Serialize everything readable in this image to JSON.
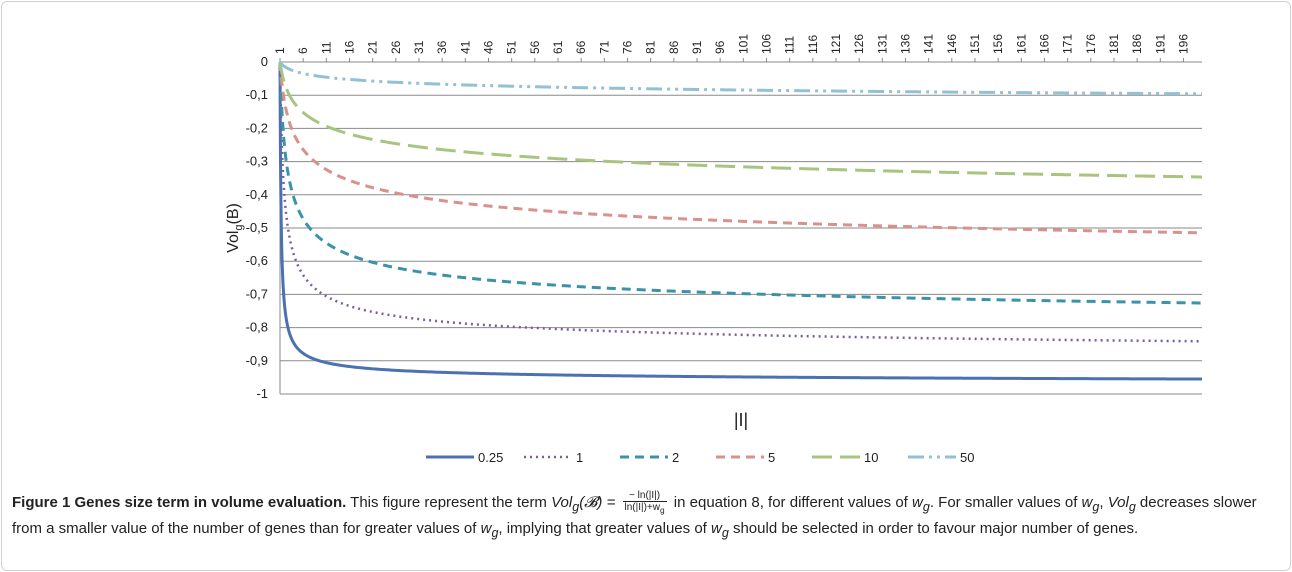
{
  "chart_data": {
    "type": "line",
    "xlabel": "|I|",
    "ylabel": "Vol",
    "ylabel_sub": "g",
    "ylabel_suffix": "(B)",
    "x_tick_labels": [
      "1",
      "6",
      "11",
      "16",
      "21",
      "26",
      "31",
      "36",
      "41",
      "46",
      "51",
      "56",
      "61",
      "66",
      "71",
      "76",
      "81",
      "86",
      "91",
      "96",
      "101",
      "106",
      "111",
      "116",
      "121",
      "126",
      "131",
      "136",
      "141",
      "146",
      "151",
      "156",
      "161",
      "166",
      "171",
      "176",
      "181",
      "186",
      "191",
      "196"
    ],
    "y_tick_labels": [
      "0",
      "-0,1",
      "-0,2",
      "-0,3",
      "-0,4",
      "-0,5",
      "-0,6",
      "-0,7",
      "-0,8",
      "-0,9",
      "-1"
    ],
    "ylim": [
      -1,
      0
    ],
    "xlim": [
      1,
      200
    ],
    "grid": "horizontal",
    "legend_placement": "bottom",
    "series": [
      {
        "name": "0.25",
        "w": 0.25,
        "color": "#4a71b0",
        "dash": "solid",
        "x": [
          1,
          2,
          3,
          5,
          10,
          20,
          50,
          100,
          150,
          200
        ],
        "values": [
          0,
          -0.735,
          -0.815,
          -0.866,
          -0.902,
          -0.923,
          -0.94,
          -0.948,
          -0.953,
          -0.955
        ]
      },
      {
        "name": "1",
        "w": 1,
        "color": "#7b5d9c",
        "dash": "dotted",
        "x": [
          1,
          2,
          3,
          5,
          10,
          20,
          50,
          100,
          150,
          200
        ],
        "values": [
          0,
          -0.409,
          -0.524,
          -0.617,
          -0.697,
          -0.75,
          -0.796,
          -0.822,
          -0.834,
          -0.841
        ]
      },
      {
        "name": "2",
        "w": 2,
        "color": "#3a93ab",
        "dash": "dashed",
        "x": [
          1,
          2,
          3,
          5,
          10,
          20,
          50,
          100,
          150,
          200
        ],
        "values": [
          0,
          -0.257,
          -0.355,
          -0.446,
          -0.535,
          -0.6,
          -0.662,
          -0.697,
          -0.715,
          -0.726
        ]
      },
      {
        "name": "5",
        "w": 5,
        "color": "#d9918b",
        "dash": "dashed",
        "x": [
          1,
          2,
          3,
          5,
          10,
          20,
          50,
          100,
          150,
          200
        ],
        "values": [
          0,
          -0.122,
          -0.18,
          -0.244,
          -0.315,
          -0.375,
          -0.439,
          -0.479,
          -0.501,
          -0.514
        ]
      },
      {
        "name": "10",
        "w": 10,
        "color": "#a9c47f",
        "dash": "longdash",
        "x": [
          1,
          2,
          3,
          5,
          10,
          20,
          50,
          100,
          150,
          200
        ],
        "values": [
          0,
          -0.065,
          -0.099,
          -0.139,
          -0.187,
          -0.231,
          -0.281,
          -0.315,
          -0.334,
          -0.346
        ]
      },
      {
        "name": "50",
        "w": 50,
        "color": "#92c1d3",
        "dash": "dashdotdot",
        "x": [
          1,
          2,
          3,
          5,
          10,
          20,
          50,
          100,
          150,
          200
        ],
        "values": [
          0,
          -0.014,
          -0.022,
          -0.031,
          -0.044,
          -0.057,
          -0.073,
          -0.084,
          -0.091,
          -0.096
        ]
      }
    ]
  },
  "caption": {
    "title": "Figure 1 Genes size term in volume evaluation.",
    "text_1": " This figure represent the term ",
    "formula_lhs": "Vol",
    "formula_lhs_sub": "g",
    "formula_arg": "(𝓑) = ",
    "frac_num": "− ln(|I|)",
    "frac_den": "ln(|I|)+w",
    "frac_den_sub": "g",
    "text_2": " in equation 8, for different values of ",
    "w_var": "w",
    "w_sub": "g",
    "text_3": ". For smaller values of ",
    "text_4": ", ",
    "vol_var": "Vol",
    "vol_sub": "g",
    "text_5": " decreases slower from a smaller value of the number of genes than for greater values of ",
    "text_6": ", implying that greater values of ",
    "text_7": " should be selected in order to favour major number of genes."
  }
}
